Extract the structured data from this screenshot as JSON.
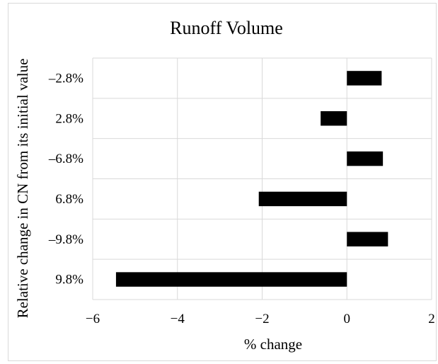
{
  "chart_data": {
    "type": "bar",
    "orientation": "horizontal",
    "title": "Runoff Volume",
    "xlabel": "% change",
    "ylabel": "Relative change in CN from its initial value",
    "categories": [
      "–2.8%",
      "2.8%",
      "–6.8%",
      "6.8%",
      "–9.8%",
      "9.8%"
    ],
    "values": [
      0.82,
      -0.62,
      0.85,
      -2.08,
      0.97,
      -5.45
    ],
    "xlim": [
      -6,
      2
    ],
    "xticks": [
      -6,
      -4,
      -2,
      0,
      2
    ],
    "xtick_labels": [
      "−6",
      "−4",
      "−2",
      "0",
      "2"
    ],
    "grid": true,
    "bar_color": "#000000",
    "grid_color": "#d9d9d9"
  }
}
